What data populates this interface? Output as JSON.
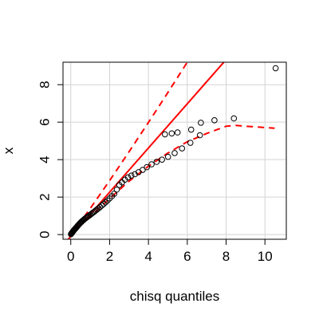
{
  "chart_data": {
    "type": "scatter",
    "title": "",
    "xlabel": "chisq quantiles",
    "ylabel": "x",
    "xlim": [
      -0.4,
      11.1
    ],
    "ylim": [
      -0.25,
      9.2
    ],
    "grid": true,
    "xticks": [
      0,
      2,
      4,
      6,
      8,
      10
    ],
    "yticks": [
      0,
      2,
      4,
      6,
      8
    ],
    "xtick_labels": [
      "0",
      "2",
      "4",
      "6",
      "8",
      "10"
    ],
    "ytick_labels": [
      "0",
      "2",
      "4",
      "6",
      "8"
    ],
    "colors": {
      "reference": "#ff0000",
      "points": "#000000",
      "grid": "#d3d3d3"
    },
    "reference_line": {
      "slope": 1.18,
      "intercept": -0.1
    },
    "envelope_upper": [
      [
        0,
        -0.02
      ],
      [
        1,
        1.39
      ],
      [
        2,
        2.88
      ],
      [
        3,
        4.42
      ],
      [
        4,
        5.98
      ],
      [
        5,
        7.58
      ],
      [
        6,
        9.2
      ]
    ],
    "envelope_lower": [
      [
        0,
        -0.02
      ],
      [
        1,
        0.96
      ],
      [
        2,
        1.92
      ],
      [
        3,
        2.85
      ],
      [
        4,
        3.65
      ],
      [
        5,
        4.35
      ],
      [
        6,
        4.95
      ],
      [
        7,
        5.4
      ],
      [
        8,
        5.78
      ],
      [
        8.5,
        5.83
      ],
      [
        9,
        5.78
      ],
      [
        10.5,
        5.68
      ]
    ],
    "points": [
      [
        0.01,
        0.02
      ],
      [
        0.03,
        0.05
      ],
      [
        0.05,
        0.08
      ],
      [
        0.07,
        0.1
      ],
      [
        0.09,
        0.13
      ],
      [
        0.11,
        0.16
      ],
      [
        0.13,
        0.19
      ],
      [
        0.15,
        0.22
      ],
      [
        0.18,
        0.25
      ],
      [
        0.2,
        0.28
      ],
      [
        0.23,
        0.31
      ],
      [
        0.26,
        0.35
      ],
      [
        0.29,
        0.38
      ],
      [
        0.32,
        0.42
      ],
      [
        0.35,
        0.46
      ],
      [
        0.38,
        0.5
      ],
      [
        0.42,
        0.54
      ],
      [
        0.45,
        0.58
      ],
      [
        0.49,
        0.62
      ],
      [
        0.53,
        0.66
      ],
      [
        0.57,
        0.7
      ],
      [
        0.61,
        0.74
      ],
      [
        0.66,
        0.78
      ],
      [
        0.7,
        0.82
      ],
      [
        0.75,
        0.86
      ],
      [
        0.8,
        0.9
      ],
      [
        0.85,
        0.94
      ],
      [
        0.9,
        0.98
      ],
      [
        0.96,
        1.02
      ],
      [
        1.02,
        1.07
      ],
      [
        1.08,
        1.12
      ],
      [
        1.14,
        1.17
      ],
      [
        1.21,
        1.22
      ],
      [
        1.28,
        1.28
      ],
      [
        1.35,
        1.34
      ],
      [
        1.43,
        1.4
      ],
      [
        1.51,
        1.47
      ],
      [
        1.6,
        1.55
      ],
      [
        1.69,
        1.63
      ],
      [
        1.79,
        1.72
      ],
      [
        1.89,
        1.82
      ],
      [
        2.0,
        1.93
      ],
      [
        2.12,
        2.05
      ],
      [
        2.24,
        2.18
      ],
      [
        2.37,
        2.4
      ],
      [
        2.5,
        2.65
      ],
      [
        2.64,
        2.78
      ],
      [
        2.79,
        2.93
      ],
      [
        2.95,
        3.05
      ],
      [
        3.12,
        3.15
      ],
      [
        3.3,
        3.22
      ],
      [
        3.49,
        3.33
      ],
      [
        3.7,
        3.45
      ],
      [
        3.92,
        3.6
      ],
      [
        4.16,
        3.75
      ],
      [
        4.42,
        3.88
      ],
      [
        4.7,
        4.0
      ],
      [
        5.01,
        4.15
      ],
      [
        5.35,
        4.35
      ],
      [
        5.73,
        4.6
      ],
      [
        6.16,
        4.9
      ],
      [
        6.65,
        5.3
      ],
      [
        4.85,
        5.35
      ],
      [
        5.2,
        5.4
      ],
      [
        5.5,
        5.45
      ],
      [
        6.2,
        5.6
      ],
      [
        6.7,
        5.97
      ],
      [
        7.4,
        6.1
      ],
      [
        8.4,
        6.2
      ],
      [
        10.55,
        8.88
      ]
    ]
  }
}
